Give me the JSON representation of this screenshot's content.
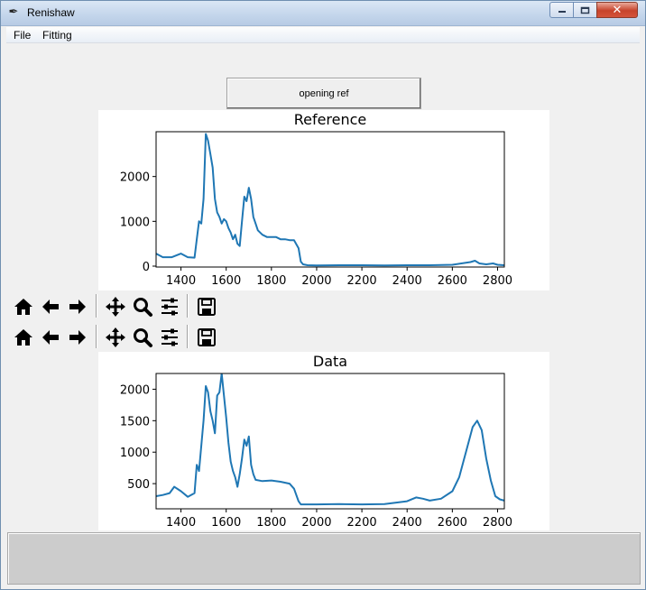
{
  "window": {
    "title": "Renishaw",
    "app_icon": "feather-icon"
  },
  "menubar": {
    "items": [
      "File",
      "Fitting"
    ]
  },
  "open_button": {
    "label": "opening ref"
  },
  "toolbar_icons": [
    "home-icon",
    "back-arrow-icon",
    "forward-arrow-icon",
    "pan-icon",
    "zoom-icon",
    "configure-subplots-icon",
    "save-icon"
  ],
  "colors": {
    "line": "#1f77b4",
    "figure_bg": "#ffffff",
    "window_bg": "#f0f0f0"
  },
  "chart_data": [
    {
      "type": "line",
      "title": "Reference",
      "xlabel": "",
      "ylabel": "",
      "xlim": [
        1290,
        2830
      ],
      "ylim": [
        -20,
        3000
      ],
      "xticks": [
        1400,
        1600,
        1800,
        2000,
        2200,
        2400,
        2600,
        2800
      ],
      "yticks": [
        0,
        1000,
        2000
      ],
      "grid": false,
      "x": [
        1290,
        1320,
        1360,
        1400,
        1430,
        1460,
        1470,
        1480,
        1490,
        1500,
        1510,
        1520,
        1530,
        1540,
        1550,
        1560,
        1570,
        1580,
        1590,
        1600,
        1610,
        1620,
        1630,
        1640,
        1650,
        1660,
        1670,
        1680,
        1690,
        1700,
        1710,
        1720,
        1730,
        1740,
        1760,
        1780,
        1800,
        1820,
        1840,
        1860,
        1880,
        1900,
        1920,
        1930,
        1940,
        1960,
        2000,
        2100,
        2200,
        2300,
        2400,
        2500,
        2600,
        2680,
        2700,
        2720,
        2750,
        2780,
        2800,
        2830
      ],
      "values": [
        280,
        200,
        200,
        280,
        200,
        190,
        600,
        1000,
        950,
        1500,
        2950,
        2800,
        2500,
        2200,
        1500,
        1200,
        1100,
        950,
        1050,
        1000,
        850,
        750,
        600,
        700,
        500,
        450,
        1000,
        1550,
        1450,
        1750,
        1500,
        1100,
        950,
        800,
        700,
        650,
        650,
        650,
        600,
        600,
        580,
        580,
        400,
        100,
        40,
        20,
        15,
        20,
        20,
        15,
        20,
        20,
        30,
        90,
        120,
        60,
        40,
        60,
        30,
        20
      ]
    },
    {
      "type": "line",
      "title": "Data",
      "xlabel": "",
      "ylabel": "",
      "xlim": [
        1290,
        2830
      ],
      "ylim": [
        100,
        2250
      ],
      "xticks": [
        1400,
        1600,
        1800,
        2000,
        2200,
        2400,
        2600,
        2800
      ],
      "yticks": [
        500,
        1000,
        1500,
        2000
      ],
      "grid": false,
      "x": [
        1290,
        1320,
        1350,
        1370,
        1400,
        1430,
        1460,
        1470,
        1480,
        1490,
        1500,
        1510,
        1520,
        1530,
        1540,
        1550,
        1560,
        1570,
        1580,
        1590,
        1600,
        1610,
        1620,
        1630,
        1640,
        1650,
        1660,
        1670,
        1680,
        1690,
        1700,
        1710,
        1720,
        1730,
        1760,
        1800,
        1840,
        1880,
        1900,
        1920,
        1930,
        1960,
        2000,
        2100,
        2200,
        2300,
        2400,
        2440,
        2470,
        2500,
        2550,
        2600,
        2630,
        2660,
        2690,
        2710,
        2730,
        2750,
        2770,
        2790,
        2810,
        2830
      ],
      "values": [
        300,
        320,
        350,
        450,
        380,
        290,
        350,
        800,
        700,
        1100,
        1500,
        2050,
        1950,
        1650,
        1500,
        1300,
        1900,
        1950,
        2250,
        1900,
        1550,
        1150,
        850,
        700,
        600,
        450,
        650,
        900,
        1200,
        1100,
        1250,
        800,
        650,
        560,
        540,
        550,
        530,
        500,
        420,
        220,
        170,
        170,
        170,
        175,
        170,
        175,
        220,
        280,
        260,
        230,
        260,
        380,
        600,
        1000,
        1400,
        1500,
        1350,
        900,
        550,
        300,
        250,
        230
      ]
    }
  ]
}
